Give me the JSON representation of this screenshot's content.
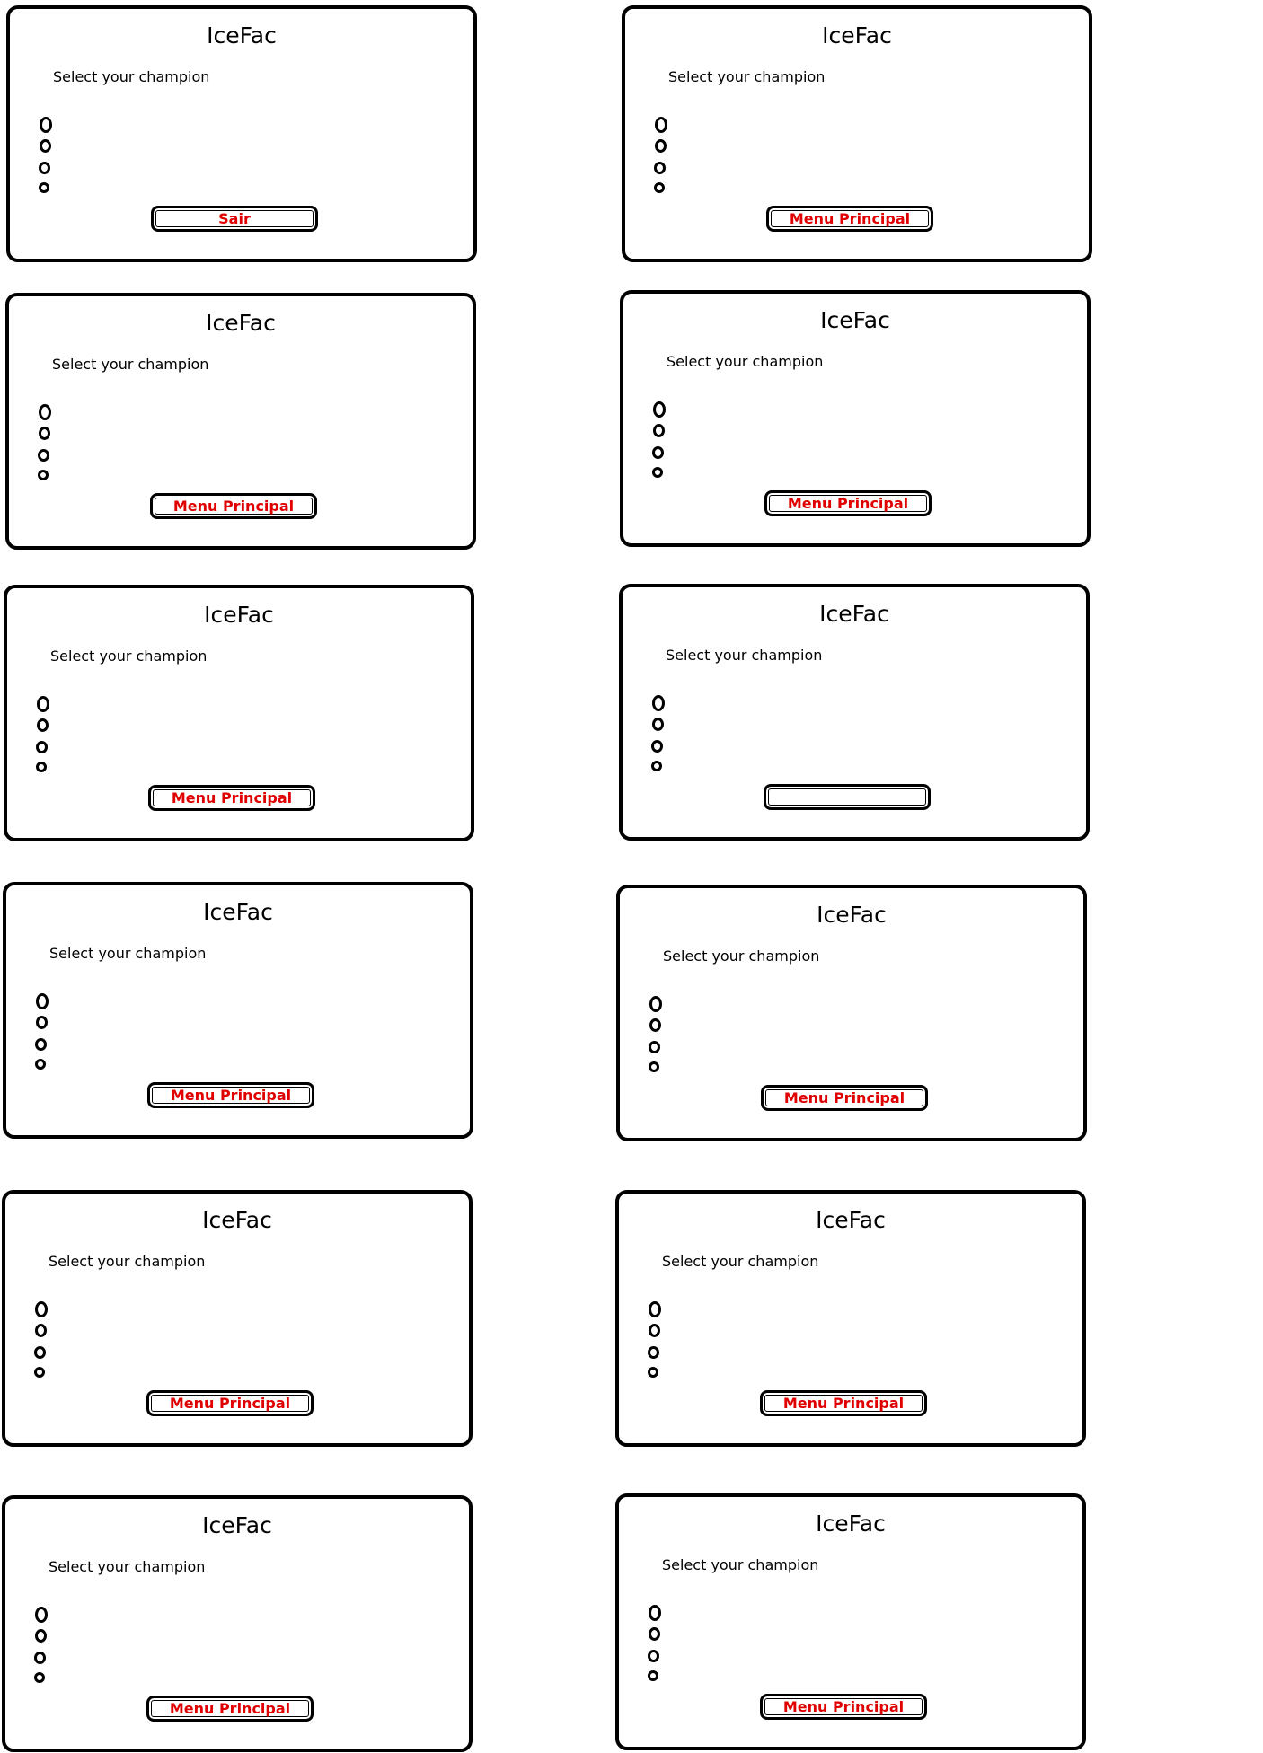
{
  "panels": [
    {
      "title": "IceFac",
      "subtitle": "Select your champion",
      "button_label": "Sair"
    },
    {
      "title": "IceFac",
      "subtitle": "Select your champion",
      "button_label": "Menu Principal"
    },
    {
      "title": "IceFac",
      "subtitle": "Select your champion",
      "button_label": "Menu Principal"
    },
    {
      "title": "IceFac",
      "subtitle": "Select your champion",
      "button_label": "Menu Principal"
    },
    {
      "title": "IceFac",
      "subtitle": "Select your champion",
      "button_label": "Menu Principal"
    },
    {
      "title": "IceFac",
      "subtitle": "Select your champion",
      "button_label": ""
    },
    {
      "title": "IceFac",
      "subtitle": "Select your champion",
      "button_label": "Menu Principal"
    },
    {
      "title": "IceFac",
      "subtitle": "Select your champion",
      "button_label": "Menu Principal"
    },
    {
      "title": "IceFac",
      "subtitle": "Select your champion",
      "button_label": "Menu Principal"
    },
    {
      "title": "IceFac",
      "subtitle": "Select your champion",
      "button_label": "Menu Principal"
    },
    {
      "title": "IceFac",
      "subtitle": "Select your champion",
      "button_label": "Menu Principal"
    },
    {
      "title": "IceFac",
      "subtitle": "Select your champion",
      "button_label": "Menu Principal"
    }
  ],
  "colors": {
    "border": "#000000",
    "button_text": "#e00000",
    "background": "#ffffff"
  }
}
